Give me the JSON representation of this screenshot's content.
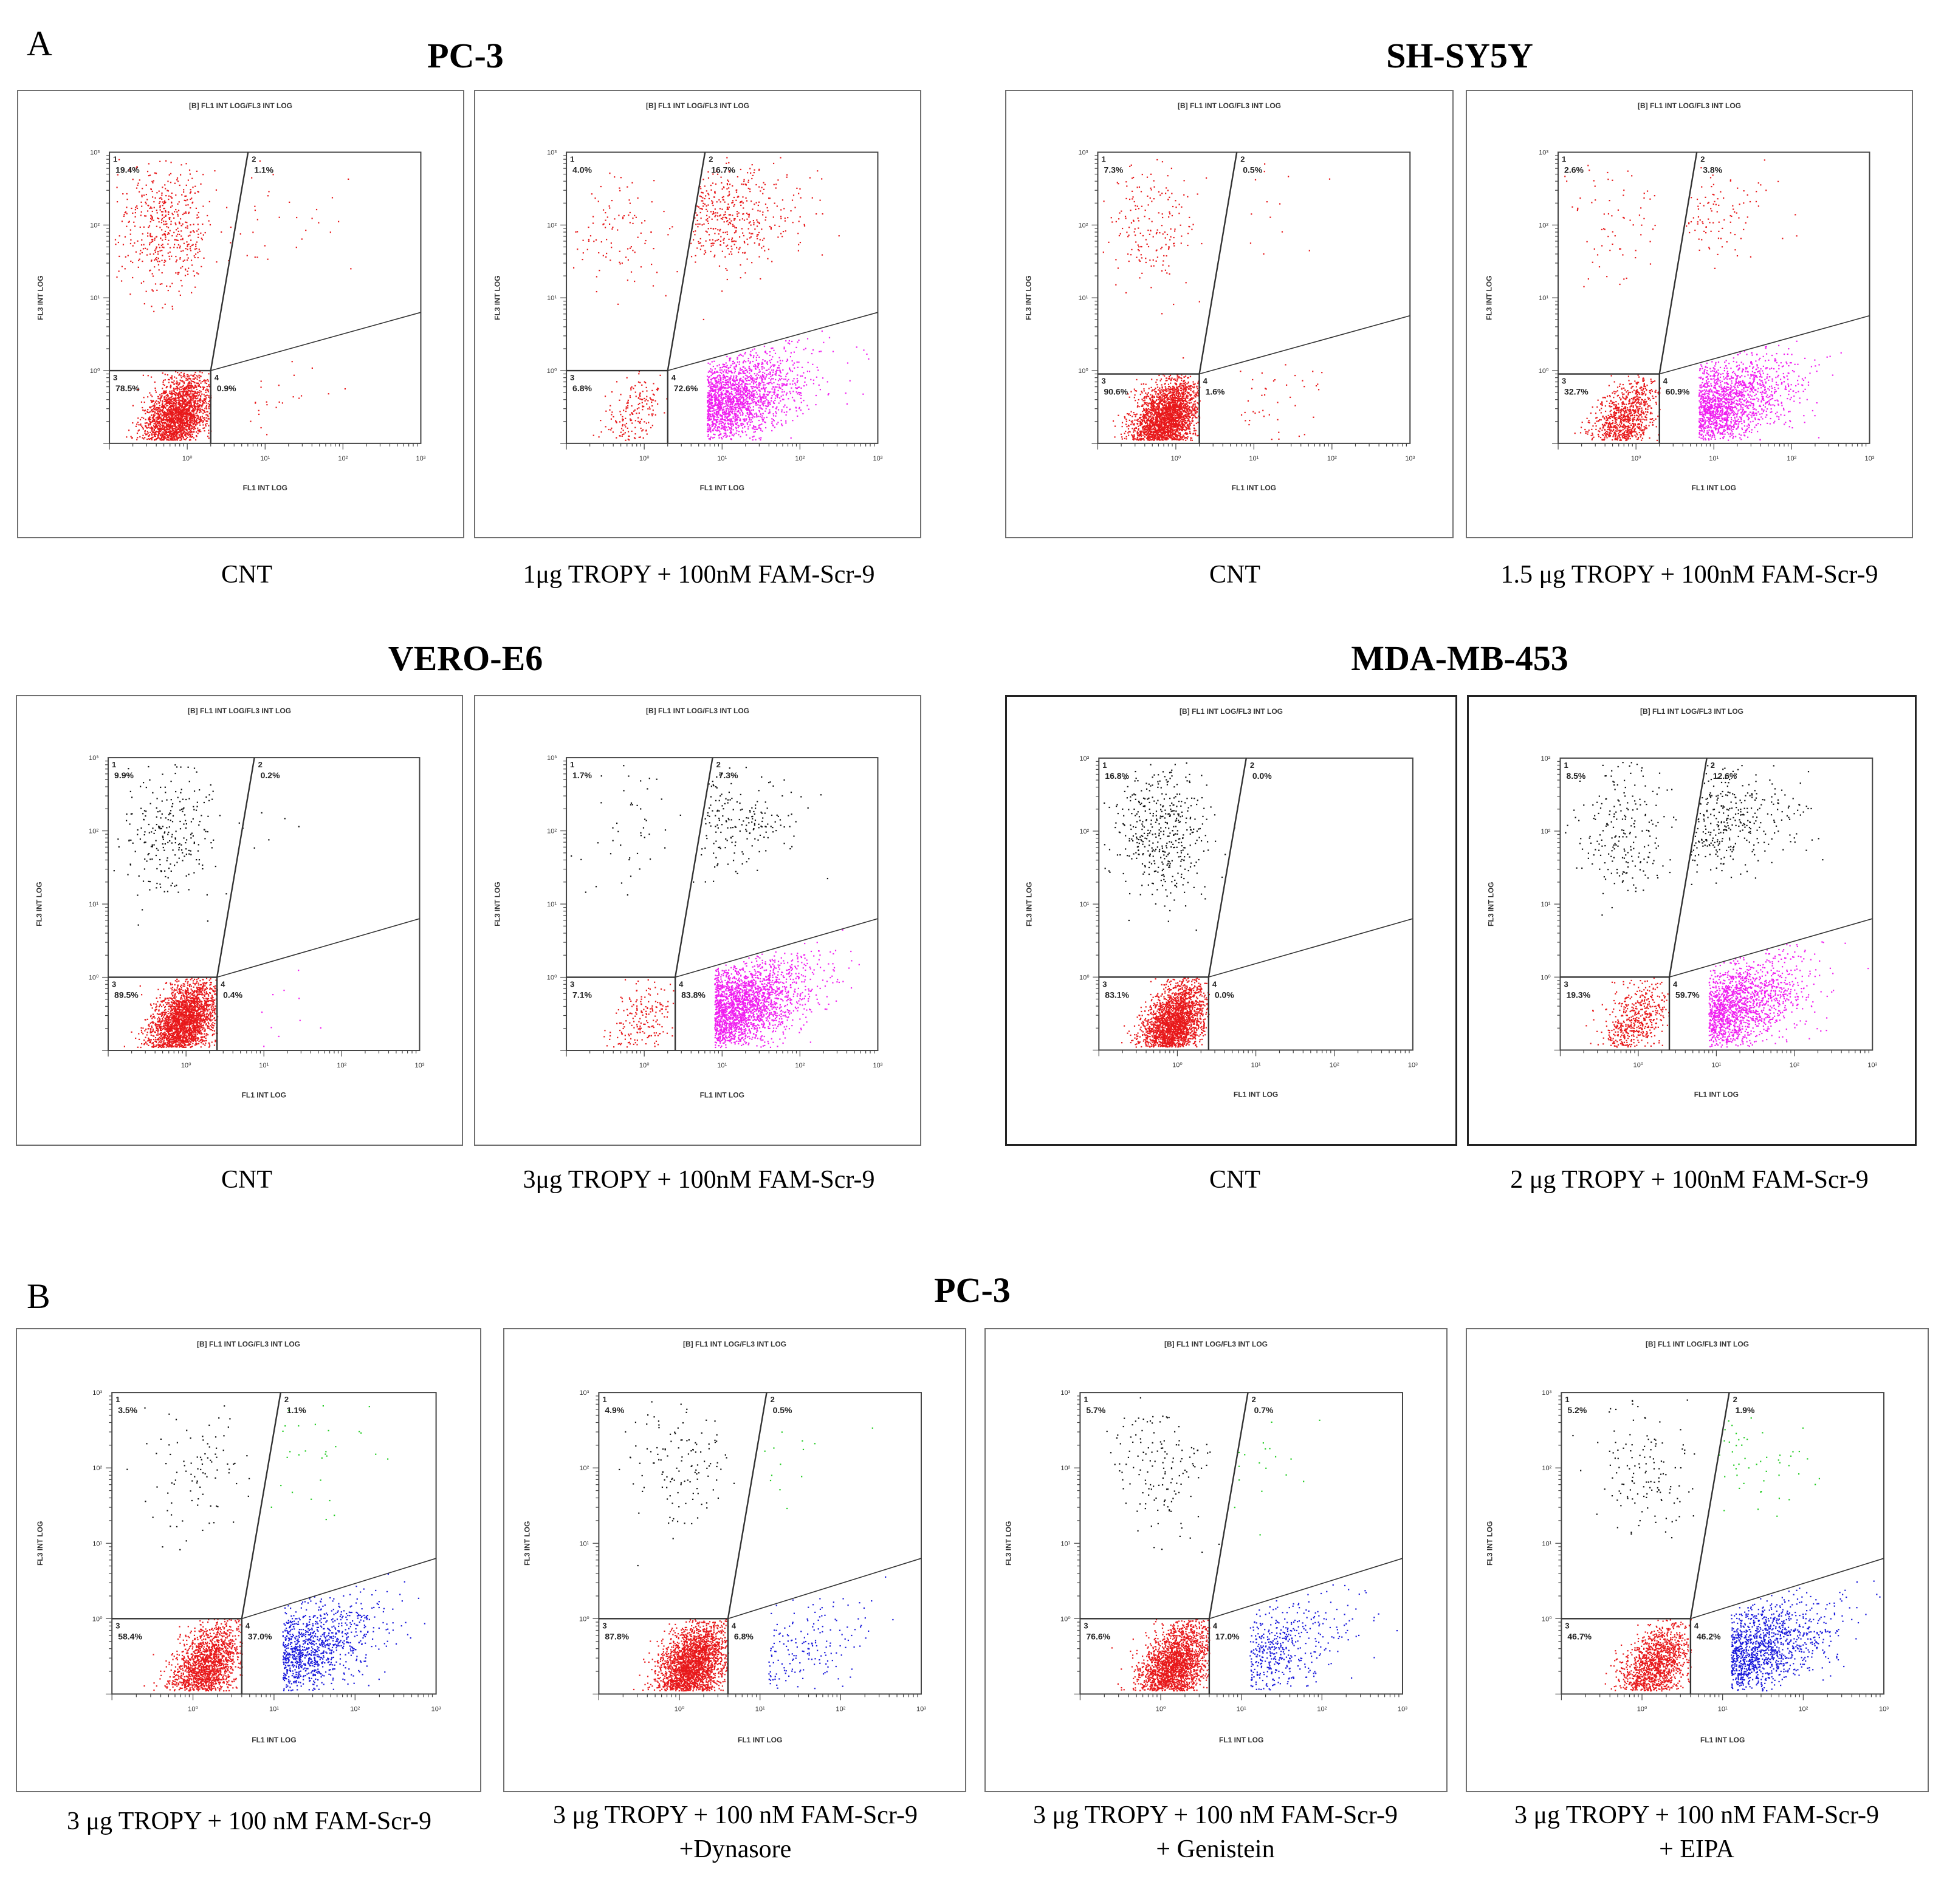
{
  "panel_labels": {
    "a": "A",
    "b": "B"
  },
  "sections": {
    "pc3_a": "PC-3",
    "shsy5y": "SH-SY5Y",
    "vero": "VERO-E6",
    "mda": "MDA-MB-453",
    "pc3_b": "PC-3"
  },
  "captions": {
    "c1": "CNT",
    "c2": "1μg TROPY + 100nM FAM-Scr-9",
    "c3": "CNT",
    "c4": "1.5 μg TROPY + 100nM FAM-Scr-9",
    "c5": "CNT",
    "c6": "3μg TROPY + 100nM FAM-Scr-9",
    "c7": "CNT",
    "c8": "2 μg TROPY + 100nM FAM-Scr-9",
    "c9": "3 μg TROPY + 100 nM FAM-Scr-9",
    "c10": "3 μg TROPY + 100 nM FAM-Scr-9",
    "c10b": "+Dynasore",
    "c11": "3 μg TROPY + 100 nM FAM-Scr-9",
    "c11b": "+ Genistein",
    "c12": "3 μg TROPY + 100 nM FAM-Scr-9",
    "c12b": "+ EIPA"
  },
  "chart_data": [
    {
      "type": "scatter",
      "panel": "A",
      "cell_line": "PC-3",
      "condition": "CNT",
      "title": "[B] FL1 INT LOG/FL3 INT LOG",
      "xlabel": "FL1 INT LOG",
      "ylabel": "FL3 INT LOG",
      "xlim": [
        0.1,
        1000
      ],
      "ylim": [
        0.1,
        1000
      ],
      "x_ticks": [
        "10⁰",
        "10¹",
        "10²",
        "10³"
      ],
      "y_ticks": [
        "10⁰",
        "10¹",
        "10²",
        "10³"
      ],
      "gate_x": 2.0,
      "gate_y": 1.0,
      "quadrants": [
        {
          "id": "1",
          "percent": "19.4%"
        },
        {
          "id": "2",
          "percent": "1.1%"
        },
        {
          "id": "3",
          "percent": "78.5%"
        },
        {
          "id": "4",
          "percent": "0.9%"
        }
      ],
      "colors": {
        "q1": "#e8191b",
        "q2": "#e8191b",
        "q3": "#e8191b",
        "q4": "#e8191b"
      }
    },
    {
      "type": "scatter",
      "panel": "A",
      "cell_line": "PC-3",
      "condition": "1μg TROPY + 100nM FAM-Scr-9",
      "title": "[B] FL1 INT LOG/FL3 INT LOG",
      "xlabel": "FL1 INT LOG",
      "ylabel": "FL3 INT LOG",
      "xlim": [
        0.1,
        1000
      ],
      "ylim": [
        0.1,
        1000
      ],
      "x_ticks": [
        "10⁰",
        "10¹",
        "10²",
        "10³"
      ],
      "y_ticks": [
        "10⁰",
        "10¹",
        "10²",
        "10³"
      ],
      "gate_x": 2.0,
      "gate_y": 1.0,
      "quadrants": [
        {
          "id": "1",
          "percent": "4.0%"
        },
        {
          "id": "2",
          "percent": "16.7%"
        },
        {
          "id": "3",
          "percent": "6.8%"
        },
        {
          "id": "4",
          "percent": "72.6%"
        }
      ],
      "colors": {
        "q1": "#e8191b",
        "q2": "#e8191b",
        "q3": "#e8191b",
        "q4": "#f01ef0"
      }
    },
    {
      "type": "scatter",
      "panel": "A",
      "cell_line": "SH-SY5Y",
      "condition": "CNT",
      "title": "[B] FL1 INT LOG/FL3 INT LOG",
      "xlabel": "FL1 INT LOG",
      "ylabel": "FL3 INT LOG",
      "xlim": [
        0.1,
        1000
      ],
      "ylim": [
        0.1,
        1000
      ],
      "x_ticks": [
        "10⁰",
        "10¹",
        "10²",
        "10³"
      ],
      "y_ticks": [
        "10⁰",
        "10¹",
        "10²",
        "10³"
      ],
      "gate_x": 2.0,
      "gate_y": 0.9,
      "quadrants": [
        {
          "id": "1",
          "percent": "7.3%"
        },
        {
          "id": "2",
          "percent": "0.5%"
        },
        {
          "id": "3",
          "percent": "90.6%"
        },
        {
          "id": "4",
          "percent": "1.6%"
        }
      ],
      "colors": {
        "q1": "#e8191b",
        "q2": "#e8191b",
        "q3": "#e8191b",
        "q4": "#e8191b"
      }
    },
    {
      "type": "scatter",
      "panel": "A",
      "cell_line": "SH-SY5Y",
      "condition": "1.5 μg TROPY + 100nM FAM-Scr-9",
      "title": "[B] FL1 INT LOG/FL3 INT LOG",
      "xlabel": "FL1 INT LOG",
      "ylabel": "FL3 INT LOG",
      "xlim": [
        0.1,
        1000
      ],
      "ylim": [
        0.1,
        1000
      ],
      "x_ticks": [
        "10⁰",
        "10¹",
        "10²",
        "10³"
      ],
      "y_ticks": [
        "10⁰",
        "10¹",
        "10²",
        "10³"
      ],
      "gate_x": 2.0,
      "gate_y": 0.9,
      "quadrants": [
        {
          "id": "1",
          "percent": "2.6%"
        },
        {
          "id": "2",
          "percent": "3.8%"
        },
        {
          "id": "3",
          "percent": "32.7%"
        },
        {
          "id": "4",
          "percent": "60.9%"
        }
      ],
      "colors": {
        "q1": "#e8191b",
        "q2": "#e8191b",
        "q3": "#e8191b",
        "q4": "#f01ef0"
      }
    },
    {
      "type": "scatter",
      "panel": "A",
      "cell_line": "VERO-E6",
      "condition": "CNT",
      "title": "[B] FL1 INT LOG/FL3 INT LOG",
      "xlabel": "FL1 INT LOG",
      "ylabel": "FL3 INT LOG",
      "xlim": [
        0.1,
        1000
      ],
      "ylim": [
        0.1,
        1000
      ],
      "x_ticks": [
        "10⁰",
        "10¹",
        "10²",
        "10³"
      ],
      "y_ticks": [
        "10⁰",
        "10¹",
        "10²",
        "10³"
      ],
      "gate_x": 2.5,
      "gate_y": 1.0,
      "quadrants": [
        {
          "id": "1",
          "percent": "9.9%"
        },
        {
          "id": "2",
          "percent": "0.2%"
        },
        {
          "id": "3",
          "percent": "89.5%"
        },
        {
          "id": "4",
          "percent": "0.4%"
        }
      ],
      "colors": {
        "q1": "#111111",
        "q2": "#111111",
        "q3": "#e8191b",
        "q4": "#f01ef0"
      }
    },
    {
      "type": "scatter",
      "panel": "A",
      "cell_line": "VERO-E6",
      "condition": "3μg TROPY + 100nM FAM-Scr-9",
      "title": "[B] FL1 INT LOG/FL3 INT LOG",
      "xlabel": "FL1 INT LOG",
      "ylabel": "FL3 INT LOG",
      "xlim": [
        0.1,
        1000
      ],
      "ylim": [
        0.1,
        1000
      ],
      "x_ticks": [
        "10⁰",
        "10¹",
        "10²",
        "10³"
      ],
      "y_ticks": [
        "10⁰",
        "10¹",
        "10²",
        "10³"
      ],
      "gate_x": 2.5,
      "gate_y": 1.0,
      "quadrants": [
        {
          "id": "1",
          "percent": "1.7%"
        },
        {
          "id": "2",
          "percent": "7.3%"
        },
        {
          "id": "3",
          "percent": "7.1%"
        },
        {
          "id": "4",
          "percent": "83.8%"
        }
      ],
      "colors": {
        "q1": "#111111",
        "q2": "#111111",
        "q3": "#e8191b",
        "q4": "#f01ef0"
      }
    },
    {
      "type": "scatter",
      "panel": "A",
      "cell_line": "MDA-MB-453",
      "condition": "CNT",
      "title": "[B] FL1 INT LOG/FL3 INT LOG",
      "xlabel": "FL1 INT LOG",
      "ylabel": "FL3 INT LOG",
      "xlim": [
        0.1,
        1000
      ],
      "ylim": [
        0.1,
        1000
      ],
      "x_ticks": [
        "10⁰",
        "10¹",
        "10²",
        "10³"
      ],
      "y_ticks": [
        "10⁰",
        "10¹",
        "10²",
        "10³"
      ],
      "gate_x": 2.5,
      "gate_y": 1.0,
      "quadrants": [
        {
          "id": "1",
          "percent": "16.8%"
        },
        {
          "id": "2",
          "percent": "0.0%"
        },
        {
          "id": "3",
          "percent": "83.1%"
        },
        {
          "id": "4",
          "percent": "0.0%"
        }
      ],
      "colors": {
        "q1": "#111111",
        "q2": "#111111",
        "q3": "#e8191b",
        "q4": "#f01ef0"
      }
    },
    {
      "type": "scatter",
      "panel": "A",
      "cell_line": "MDA-MB-453",
      "condition": "2 μg TROPY + 100nM FAM-Scr-9",
      "title": "[B] FL1 INT LOG/FL3 INT LOG",
      "xlabel": "FL1 INT LOG",
      "ylabel": "FL3 INT LOG",
      "xlim": [
        0.1,
        1000
      ],
      "ylim": [
        0.1,
        1000
      ],
      "x_ticks": [
        "10⁰",
        "10¹",
        "10²",
        "10³"
      ],
      "y_ticks": [
        "10⁰",
        "10¹",
        "10²",
        "10³"
      ],
      "gate_x": 2.5,
      "gate_y": 1.0,
      "quadrants": [
        {
          "id": "1",
          "percent": "8.5%"
        },
        {
          "id": "2",
          "percent": "12.6%"
        },
        {
          "id": "3",
          "percent": "19.3%"
        },
        {
          "id": "4",
          "percent": "59.7%"
        }
      ],
      "colors": {
        "q1": "#111111",
        "q2": "#111111",
        "q3": "#e8191b",
        "q4": "#f01ef0"
      }
    },
    {
      "type": "scatter",
      "panel": "B",
      "cell_line": "PC-3",
      "condition": "3 μg TROPY + 100 nM FAM-Scr-9",
      "title": "[B] FL1 INT LOG/FL3 INT LOG",
      "xlabel": "FL1 INT LOG",
      "ylabel": "FL3 INT LOG",
      "xlim": [
        0.1,
        1000
      ],
      "ylim": [
        0.1,
        1000
      ],
      "x_ticks": [
        "10⁰",
        "10¹",
        "10²",
        "10³"
      ],
      "y_ticks": [
        "10⁰",
        "10¹",
        "10²",
        "10³"
      ],
      "gate_x": 4.0,
      "gate_y": 1.0,
      "quadrants": [
        {
          "id": "1",
          "percent": "3.5%"
        },
        {
          "id": "2",
          "percent": "1.1%"
        },
        {
          "id": "3",
          "percent": "58.4%"
        },
        {
          "id": "4",
          "percent": "37.0%"
        }
      ],
      "colors": {
        "q1": "#111111",
        "q2": "#22cc22",
        "q3": "#e8191b",
        "q4": "#1a1adc"
      }
    },
    {
      "type": "scatter",
      "panel": "B",
      "cell_line": "PC-3",
      "condition": "3 μg TROPY + 100 nM FAM-Scr-9 +Dynasore",
      "title": "[B] FL1 INT LOG/FL3 INT LOG",
      "xlabel": "FL1 INT LOG",
      "ylabel": "FL3 INT LOG",
      "xlim": [
        0.1,
        1000
      ],
      "ylim": [
        0.1,
        1000
      ],
      "x_ticks": [
        "10⁰",
        "10¹",
        "10²",
        "10³"
      ],
      "y_ticks": [
        "10⁰",
        "10¹",
        "10²",
        "10³"
      ],
      "gate_x": 4.0,
      "gate_y": 1.0,
      "quadrants": [
        {
          "id": "1",
          "percent": "4.9%"
        },
        {
          "id": "2",
          "percent": "0.5%"
        },
        {
          "id": "3",
          "percent": "87.8%"
        },
        {
          "id": "4",
          "percent": "6.8%"
        }
      ],
      "colors": {
        "q1": "#111111",
        "q2": "#22cc22",
        "q3": "#e8191b",
        "q4": "#1a1adc"
      }
    },
    {
      "type": "scatter",
      "panel": "B",
      "cell_line": "PC-3",
      "condition": "3 μg TROPY + 100 nM FAM-Scr-9 + Genistein",
      "title": "[B] FL1 INT LOG/FL3 INT LOG",
      "xlabel": "FL1 INT LOG",
      "ylabel": "FL3 INT LOG",
      "xlim": [
        0.1,
        1000
      ],
      "ylim": [
        0.1,
        1000
      ],
      "x_ticks": [
        "10⁰",
        "10¹",
        "10²",
        "10³"
      ],
      "y_ticks": [
        "10⁰",
        "10¹",
        "10²",
        "10³"
      ],
      "gate_x": 4.0,
      "gate_y": 1.0,
      "quadrants": [
        {
          "id": "1",
          "percent": "5.7%"
        },
        {
          "id": "2",
          "percent": "0.7%"
        },
        {
          "id": "3",
          "percent": "76.6%"
        },
        {
          "id": "4",
          "percent": "17.0%"
        }
      ],
      "colors": {
        "q1": "#111111",
        "q2": "#22cc22",
        "q3": "#e8191b",
        "q4": "#1a1adc"
      }
    },
    {
      "type": "scatter",
      "panel": "B",
      "cell_line": "PC-3",
      "condition": "3 μg TROPY + 100 nM FAM-Scr-9 + EIPA",
      "title": "[B] FL1 INT LOG/FL3 INT LOG",
      "xlabel": "FL1 INT LOG",
      "ylabel": "FL3 INT LOG",
      "xlim": [
        0.1,
        1000
      ],
      "ylim": [
        0.1,
        1000
      ],
      "x_ticks": [
        "10⁰",
        "10¹",
        "10²",
        "10³"
      ],
      "y_ticks": [
        "10⁰",
        "10¹",
        "10²",
        "10³"
      ],
      "gate_x": 4.0,
      "gate_y": 1.0,
      "quadrants": [
        {
          "id": "1",
          "percent": "5.2%"
        },
        {
          "id": "2",
          "percent": "1.9%"
        },
        {
          "id": "3",
          "percent": "46.7%"
        },
        {
          "id": "4",
          "percent": "46.2%"
        }
      ],
      "colors": {
        "q1": "#111111",
        "q2": "#22cc22",
        "q3": "#e8191b",
        "q4": "#1a1adc"
      }
    }
  ]
}
